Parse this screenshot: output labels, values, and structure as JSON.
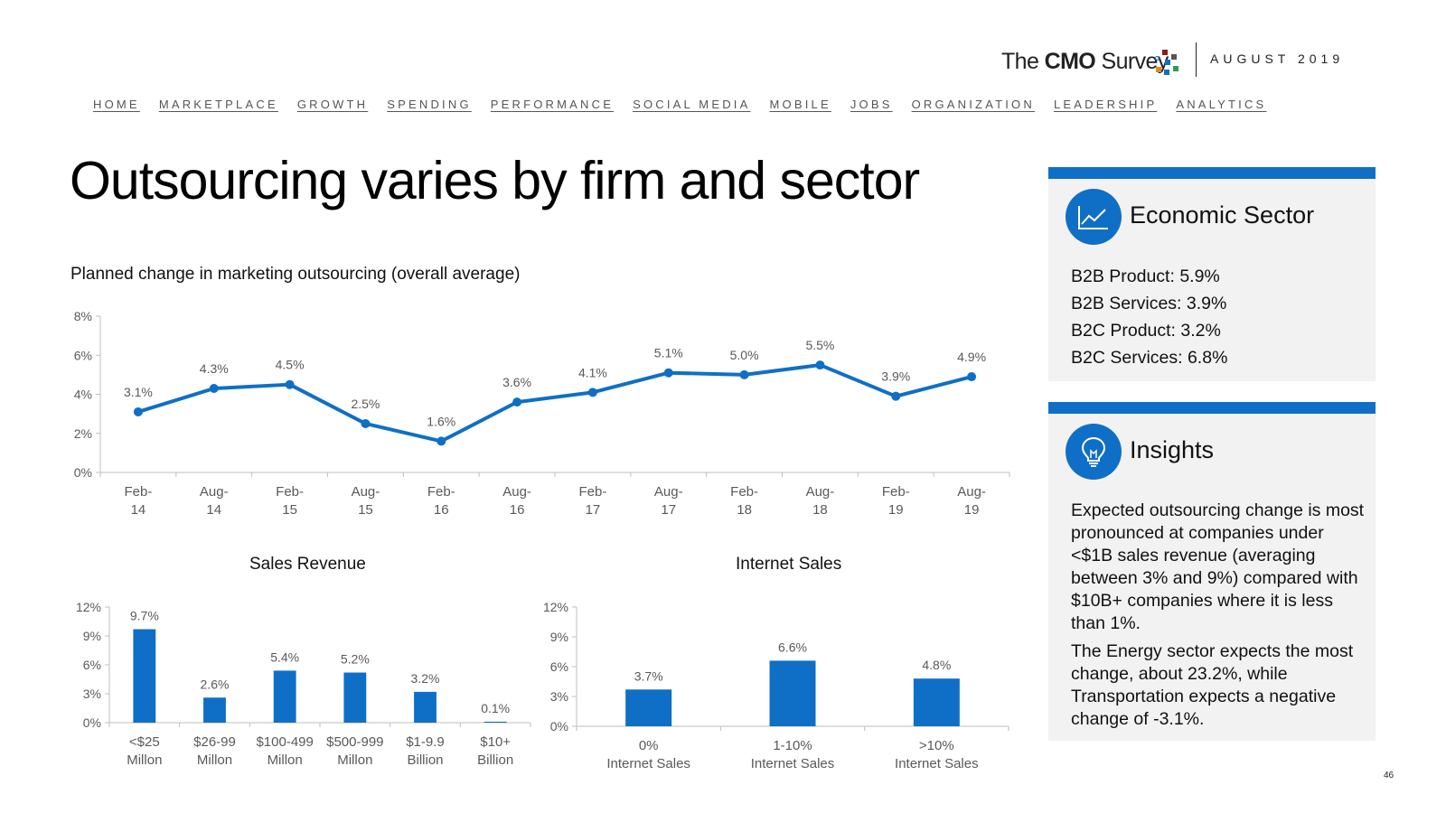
{
  "header": {
    "logo_text_light": "The ",
    "logo_text_bold": "CMO",
    "logo_text_rest": " Survey",
    "date": "AUGUST 2019"
  },
  "nav": [
    "HOME",
    "MARKETPLACE",
    "GROWTH",
    "SPENDING",
    "PERFORMANCE",
    "SOCIAL MEDIA",
    "MOBILE",
    "JOBS",
    "ORGANIZATION",
    "LEADERSHIP",
    "ANALYTICS"
  ],
  "page_title": "Outsourcing varies by firm and sector",
  "colors": {
    "accent": "#0f6fc6",
    "panel_bg": "#f2f2f2",
    "axis": "#bfbfbf",
    "tick_text": "#595959"
  },
  "chart_data": [
    {
      "type": "line",
      "title": "Planned change in marketing outsourcing (overall average)",
      "categories": [
        [
          "Feb-",
          "14"
        ],
        [
          "Aug-",
          "14"
        ],
        [
          "Feb-",
          "15"
        ],
        [
          "Aug-",
          "15"
        ],
        [
          "Feb-",
          "16"
        ],
        [
          "Aug-",
          "16"
        ],
        [
          "Feb-",
          "17"
        ],
        [
          "Aug-",
          "17"
        ],
        [
          "Feb-",
          "18"
        ],
        [
          "Aug-",
          "18"
        ],
        [
          "Feb-",
          "19"
        ],
        [
          "Aug-",
          "19"
        ]
      ],
      "values": [
        3.1,
        4.3,
        4.5,
        2.5,
        1.6,
        3.6,
        4.1,
        5.1,
        5.0,
        5.5,
        3.9,
        4.9
      ],
      "data_labels": [
        "3.1%",
        "4.3%",
        "4.5%",
        "2.5%",
        "1.6%",
        "3.6%",
        "4.1%",
        "5.1%",
        "5.0%",
        "5.5%",
        "3.9%",
        "4.9%"
      ],
      "ylim": [
        0,
        8
      ],
      "yticks": [
        0,
        2,
        4,
        6,
        8
      ],
      "ytick_labels": [
        "0%",
        "2%",
        "4%",
        "6%",
        "8%"
      ],
      "grid": false,
      "legend": "none"
    },
    {
      "type": "bar",
      "title": "Sales Revenue",
      "categories": [
        [
          "<$25",
          "Millon"
        ],
        [
          "$26-99",
          "Millon"
        ],
        [
          "$100-499",
          "Millon"
        ],
        [
          "$500-999",
          "Millon"
        ],
        [
          "$1-9.9",
          "Billion"
        ],
        [
          "$10+",
          "Billion"
        ]
      ],
      "values": [
        9.7,
        2.6,
        5.4,
        5.2,
        3.2,
        0.1
      ],
      "data_labels": [
        "9.7%",
        "2.6%",
        "5.4%",
        "5.2%",
        "3.2%",
        "0.1%"
      ],
      "ylim": [
        0,
        12
      ],
      "yticks": [
        0,
        3,
        6,
        9,
        12
      ],
      "ytick_labels": [
        "0%",
        "3%",
        "6%",
        "9%",
        "12%"
      ],
      "grid": false,
      "legend": "none"
    },
    {
      "type": "bar",
      "title": "Internet Sales",
      "categories": [
        [
          "0%",
          "Internet Sales"
        ],
        [
          "1-10%",
          "Internet Sales"
        ],
        [
          ">10%",
          "Internet Sales"
        ]
      ],
      "values": [
        3.7,
        6.6,
        4.8
      ],
      "data_labels": [
        "3.7%",
        "6.6%",
        "4.8%"
      ],
      "ylim": [
        0,
        12
      ],
      "yticks": [
        0,
        3,
        6,
        9,
        12
      ],
      "ytick_labels": [
        "0%",
        "3%",
        "6%",
        "9%",
        "12%"
      ],
      "grid": false,
      "legend": "none"
    }
  ],
  "economic_sector": {
    "heading": "Economic Sector",
    "icon": "line-chart-icon",
    "items": [
      "B2B Product: 5.9%",
      "B2B Services: 3.9%",
      "B2C Product: 3.2%",
      "B2C Services: 6.8%"
    ]
  },
  "insights": {
    "heading": "Insights",
    "icon": "lightbulb-icon",
    "paragraphs": [
      "Expected outsourcing change is most pronounced at companies under <$1B sales revenue (averaging between 3% and 9%) compared with $10B+ companies where it is less than 1%.",
      "The Energy sector expects the most change, about 23.2%, while Transportation expects a negative change of -3.1%."
    ]
  },
  "page_number": "46"
}
